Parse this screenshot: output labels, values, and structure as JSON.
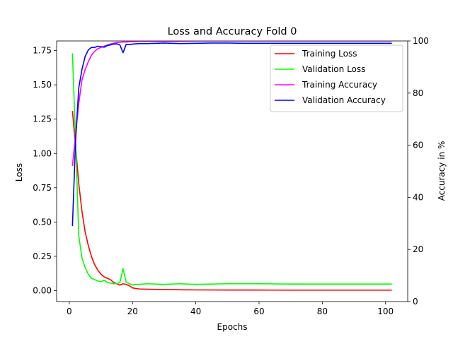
{
  "chart_data": {
    "type": "line",
    "title": "Loss and Accuracy Fold 0",
    "xlabel": "Epochs",
    "ylabel": "Loss",
    "ylabel_right": "Accuracy in %",
    "xlim": [
      -4,
      107
    ],
    "ylim": [
      -0.08,
      1.82
    ],
    "ylim_right": [
      0,
      100
    ],
    "x_ticks": [
      0,
      20,
      40,
      60,
      80,
      100
    ],
    "y_ticks": [
      0.0,
      0.25,
      0.5,
      0.75,
      1.0,
      1.25,
      1.5,
      1.75
    ],
    "y_tick_labels": [
      "0.00",
      "0.25",
      "0.50",
      "0.75",
      "1.00",
      "1.25",
      "1.50",
      "1.75"
    ],
    "y_ticks_right": [
      0,
      20,
      40,
      60,
      80,
      100
    ],
    "legend_position": "top-right",
    "grid": false,
    "series": [
      {
        "name": "Training Loss",
        "axis": "left",
        "color": "#ff0000",
        "x": [
          1,
          2,
          3,
          4,
          5,
          6,
          7,
          8,
          9,
          10,
          11,
          12,
          13,
          14,
          15,
          16,
          17,
          18,
          19,
          20,
          21,
          22,
          25,
          30,
          35,
          40,
          50,
          60,
          70,
          80,
          90,
          100,
          102
        ],
        "y": [
          1.31,
          1.05,
          0.78,
          0.58,
          0.43,
          0.33,
          0.25,
          0.19,
          0.15,
          0.12,
          0.1,
          0.09,
          0.08,
          0.06,
          0.05,
          0.04,
          0.05,
          0.045,
          0.035,
          0.02,
          0.015,
          0.012,
          0.01,
          0.008,
          0.006,
          0.005,
          0.004,
          0.004,
          0.003,
          0.003,
          0.003,
          0.003,
          0.003
        ]
      },
      {
        "name": "Validation Loss",
        "axis": "left",
        "color": "#00ff00",
        "x": [
          1,
          2,
          3,
          4,
          5,
          6,
          7,
          8,
          9,
          10,
          11,
          12,
          13,
          14,
          15,
          16,
          17,
          18,
          19,
          20,
          21,
          22,
          25,
          30,
          35,
          40,
          50,
          60,
          70,
          80,
          90,
          100,
          102
        ],
        "y": [
          1.73,
          1.1,
          0.4,
          0.24,
          0.17,
          0.12,
          0.09,
          0.08,
          0.07,
          0.065,
          0.075,
          0.06,
          0.055,
          0.05,
          0.05,
          0.06,
          0.16,
          0.06,
          0.05,
          0.04,
          0.045,
          0.045,
          0.05,
          0.045,
          0.05,
          0.045,
          0.05,
          0.05,
          0.048,
          0.048,
          0.048,
          0.048,
          0.048
        ]
      },
      {
        "name": "Training Accuracy",
        "axis": "right",
        "color": "#ff00ff",
        "x": [
          1,
          2,
          3,
          4,
          5,
          6,
          7,
          8,
          9,
          10,
          11,
          12,
          13,
          14,
          15,
          16,
          17,
          18,
          19,
          20,
          21,
          22,
          25,
          30,
          40,
          50,
          60,
          70,
          80,
          90,
          100,
          102
        ],
        "y": [
          52,
          64,
          76,
          85,
          89,
          92,
          94.5,
          96,
          97,
          97.5,
          98,
          98.4,
          98.8,
          99.1,
          99.4,
          99.5,
          99.6,
          99.6,
          99.7,
          99.8,
          99.8,
          99.9,
          99.9,
          99.9,
          100,
          100,
          100,
          100,
          100,
          100,
          100,
          100
        ]
      },
      {
        "name": "Validation Accuracy",
        "axis": "right",
        "color": "#0000ff",
        "x": [
          1,
          2,
          3,
          4,
          5,
          6,
          7,
          8,
          9,
          10,
          11,
          12,
          13,
          14,
          15,
          16,
          17,
          18,
          19,
          20,
          22,
          25,
          30,
          35,
          40,
          45,
          50,
          55,
          60,
          70,
          80,
          90,
          100,
          102
        ],
        "y": [
          29,
          62,
          82,
          89,
          94,
          96.5,
          97.5,
          97.5,
          98,
          97.8,
          97.6,
          98.2,
          98.5,
          98.8,
          98.9,
          98.5,
          95.5,
          98.7,
          98.6,
          98.8,
          99,
          99,
          99.2,
          99,
          99.1,
          99.2,
          99.2,
          99.1,
          99.1,
          99.1,
          99.1,
          99.1,
          99.1,
          99.1
        ]
      }
    ]
  }
}
